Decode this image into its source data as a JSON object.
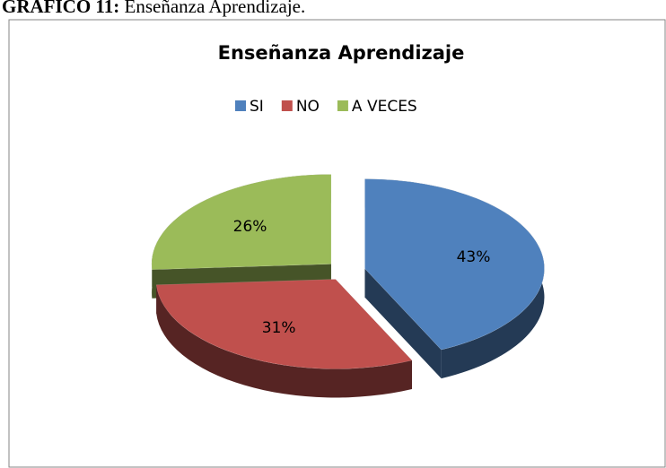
{
  "chart_data": {
    "type": "pie",
    "figure_label": "GRAFICO 11:",
    "figure_caption": "Enseñanza Aprendizaje.",
    "title": "Enseñanza Aprendizaje",
    "categories": [
      "SI",
      "NO",
      "A VECES"
    ],
    "values": [
      43,
      31,
      26
    ],
    "value_labels": [
      "43%",
      "31%",
      "26%"
    ],
    "colors": [
      "#4f81bd",
      "#c0504d",
      "#9bbb59"
    ],
    "legend": "top"
  }
}
